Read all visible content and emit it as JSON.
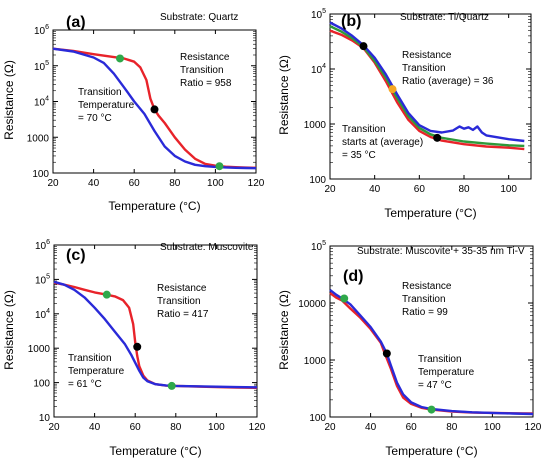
{
  "chart_data": [
    {
      "type": "line",
      "panel_label": "(a)",
      "substrate_text": "Substrate: Quartz",
      "xlabel": "Temperature (°C)",
      "ylabel": "Resistance (Ω)",
      "xlim": [
        20,
        120
      ],
      "ylim": [
        100,
        1000000
      ],
      "yscale": "log",
      "xticks": [
        20,
        40,
        60,
        80,
        100,
        120
      ],
      "yticks": [
        100,
        1000,
        10000,
        100000,
        1000000
      ],
      "annotations": [
        {
          "lines": [
            "Resistance",
            "Transition",
            "Ratio = 958"
          ]
        },
        {
          "lines": [
            "Transition",
            "Temperature",
            "",
            "= 70 °C"
          ]
        }
      ],
      "series": [
        {
          "color": "#e8232a",
          "x": [
            20,
            30,
            40,
            50,
            55,
            60,
            63,
            66,
            68,
            70,
            72,
            75,
            80,
            85,
            90,
            95,
            100,
            105,
            110,
            115,
            120
          ],
          "y": [
            300000,
            260000,
            210000,
            175000,
            160000,
            130000,
            90000,
            40000,
            12000,
            6000,
            4000,
            2500,
            1000,
            450,
            250,
            180,
            160,
            150,
            145,
            142,
            140
          ]
        },
        {
          "color": "#2a2ad8",
          "x": [
            20,
            30,
            40,
            45,
            50,
            55,
            60,
            65,
            70,
            75,
            80,
            85,
            90,
            95,
            100,
            105,
            110,
            115,
            120
          ],
          "y": [
            300000,
            250000,
            170000,
            120000,
            60000,
            25000,
            10000,
            4500,
            1500,
            550,
            300,
            210,
            170,
            155,
            148,
            143,
            140,
            138,
            136
          ]
        }
      ],
      "markers": [
        {
          "x": 53,
          "y": 160000,
          "color": "#2ea84a"
        },
        {
          "x": 70,
          "y": 6000,
          "color": "#000000"
        },
        {
          "x": 102,
          "y": 155,
          "color": "#2ea84a"
        }
      ]
    },
    {
      "type": "line",
      "panel_label": "(b)",
      "substrate_text": "Substrate: Ti/Quartz",
      "xlabel": "Temperature (°C)",
      "ylabel": "Resistance (Ω)",
      "xlim": [
        20,
        110
      ],
      "ylim": [
        100,
        100000
      ],
      "yscale": "log",
      "xticks": [
        20,
        40,
        60,
        80,
        100
      ],
      "yticks": [
        100,
        1000,
        10000,
        100000
      ],
      "annotations": [
        {
          "lines": [
            "Resistance",
            "Transition",
            "Ratio (average) = 36"
          ]
        },
        {
          "lines": [
            "Transition",
            "starts at (average)",
            "= 35 °C"
          ]
        }
      ],
      "series": [
        {
          "color": "#e8232a",
          "x": [
            20,
            25,
            30,
            35,
            40,
            45,
            50,
            55,
            60,
            65,
            70,
            80,
            90,
            100,
            107
          ],
          "y": [
            50000,
            42000,
            33000,
            24000,
            13000,
            6000,
            2500,
            1200,
            750,
            580,
            500,
            430,
            390,
            370,
            350
          ]
        },
        {
          "color": "#2e9a3a",
          "x": [
            20,
            25,
            30,
            35,
            40,
            45,
            50,
            55,
            60,
            65,
            70,
            80,
            90,
            100,
            107
          ],
          "y": [
            60000,
            48000,
            36000,
            25000,
            14000,
            7000,
            3000,
            1400,
            850,
            650,
            560,
            480,
            440,
            410,
            400
          ]
        },
        {
          "color": "#2a2ad8",
          "x": [
            20,
            25,
            30,
            35,
            40,
            45,
            50,
            55,
            60,
            65,
            70,
            75,
            78,
            80,
            82,
            84,
            86,
            88,
            90,
            100,
            107
          ],
          "y": [
            70000,
            55000,
            40000,
            27000,
            16000,
            8000,
            3500,
            1600,
            950,
            750,
            700,
            760,
            900,
            820,
            870,
            780,
            900,
            700,
            620,
            530,
            490
          ]
        }
      ],
      "markers": [
        {
          "x": 35,
          "y": 26000,
          "color": "#000000"
        },
        {
          "x": 48,
          "y": 4300,
          "color": "#f5a623"
        },
        {
          "x": 68,
          "y": 560,
          "color": "#000000"
        }
      ]
    },
    {
      "type": "line",
      "panel_label": "(c)",
      "substrate_text": "Substrate: Muscovite",
      "xlabel": "Temperature (°C)",
      "ylabel": "Resistance (Ω)",
      "xlim": [
        20,
        120
      ],
      "ylim": [
        10,
        1000000
      ],
      "yscale": "log",
      "xticks": [
        20,
        40,
        60,
        80,
        100,
        120
      ],
      "yticks": [
        10,
        100,
        1000,
        10000,
        100000,
        1000000
      ],
      "annotations": [
        {
          "lines": [
            "Resistance",
            "Transition",
            "Ratio = 417"
          ]
        },
        {
          "lines": [
            "Transition",
            "Temperature",
            "",
            "= 61 °C"
          ]
        }
      ],
      "series": [
        {
          "color": "#e8232a",
          "x": [
            20,
            25,
            30,
            35,
            40,
            45,
            50,
            54,
            57,
            59,
            60,
            61,
            62,
            64,
            66,
            70,
            75,
            80,
            90,
            100,
            110,
            120
          ],
          "y": [
            80000,
            70000,
            60000,
            50000,
            42000,
            37000,
            32000,
            25000,
            15000,
            5000,
            1500,
            600,
            300,
            160,
            115,
            90,
            82,
            80,
            77,
            74,
            72,
            70
          ]
        },
        {
          "color": "#2a2ad8",
          "x": [
            20,
            25,
            30,
            35,
            40,
            45,
            50,
            55,
            58,
            60,
            62,
            64,
            66,
            70,
            75,
            80,
            90,
            100,
            110,
            120
          ],
          "y": [
            85000,
            70000,
            50000,
            30000,
            15000,
            7000,
            3000,
            1300,
            650,
            380,
            220,
            140,
            110,
            90,
            83,
            80,
            78,
            76,
            74,
            73
          ]
        }
      ],
      "markers": [
        {
          "x": 46,
          "y": 36000,
          "color": "#2ea84a"
        },
        {
          "x": 61,
          "y": 1100,
          "color": "#000000"
        },
        {
          "x": 78,
          "y": 80,
          "color": "#2ea84a"
        }
      ]
    },
    {
      "type": "line",
      "panel_label": "(d)",
      "substrate_text": "Substrate: Muscovite + 35-35 nm Ti-V",
      "xlabel": "Temperature (°C)",
      "ylabel": "Resistance (Ω)",
      "xlim": [
        20,
        120
      ],
      "ylim": [
        100,
        100000
      ],
      "yscale": "log",
      "xticks": [
        20,
        40,
        60,
        80,
        100,
        120
      ],
      "yticks": [
        100,
        1000,
        10000,
        100000
      ],
      "annotations": [
        {
          "lines": [
            "Resistance",
            "Transition",
            "Ratio = 99"
          ]
        },
        {
          "lines": [
            "Transition",
            "Temperature",
            "",
            "= 47 °C"
          ]
        }
      ],
      "series": [
        {
          "color": "#e8232a",
          "x": [
            20,
            23,
            26,
            30,
            35,
            40,
            45,
            47,
            50,
            53,
            56,
            60,
            65,
            70,
            80,
            90,
            100,
            110,
            120
          ],
          "y": [
            15000,
            12500,
            11000,
            8000,
            5500,
            3500,
            2000,
            1300,
            700,
            350,
            220,
            170,
            145,
            135,
            125,
            120,
            118,
            116,
            115
          ]
        },
        {
          "color": "#2a2ad8",
          "x": [
            20,
            23,
            26,
            30,
            35,
            40,
            45,
            48,
            50,
            53,
            56,
            60,
            65,
            70,
            80,
            90,
            100,
            110,
            120
          ],
          "y": [
            17000,
            14000,
            12000,
            9500,
            6000,
            3800,
            2100,
            1300,
            800,
            400,
            250,
            180,
            150,
            138,
            127,
            121,
            118,
            115,
            113
          ]
        }
      ],
      "markers": [
        {
          "x": 27,
          "y": 12000,
          "color": "#2ea84a"
        },
        {
          "x": 48,
          "y": 1300,
          "color": "#000000"
        },
        {
          "x": 70,
          "y": 135,
          "color": "#2ea84a"
        }
      ]
    }
  ]
}
